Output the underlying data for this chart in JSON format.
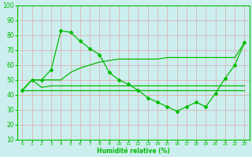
{
  "x": [
    0,
    1,
    2,
    3,
    4,
    5,
    6,
    7,
    8,
    9,
    10,
    11,
    12,
    13,
    14,
    15,
    16,
    17,
    18,
    19,
    20,
    21,
    22,
    23
  ],
  "line_main": [
    43,
    50,
    50,
    57,
    83,
    82,
    76,
    71,
    67,
    55,
    50,
    47,
    43,
    38,
    35,
    32,
    29,
    32,
    35,
    32,
    41,
    51,
    60,
    75
  ],
  "line_max": [
    43,
    50,
    50,
    50,
    50,
    55,
    58,
    60,
    62,
    63,
    64,
    64,
    64,
    64,
    64,
    65,
    65,
    65,
    65,
    65,
    65,
    65,
    65,
    75
  ],
  "line_med": [
    43,
    50,
    45,
    46,
    46,
    46,
    46,
    46,
    46,
    46,
    46,
    46,
    46,
    46,
    46,
    46,
    46,
    46,
    46,
    46,
    46,
    46,
    46,
    46
  ],
  "line_min": [
    43,
    43,
    43,
    43,
    43,
    43,
    43,
    43,
    43,
    43,
    43,
    43,
    43,
    43,
    43,
    43,
    43,
    43,
    43,
    43,
    43,
    43,
    43,
    43
  ],
  "line_color": "#00bb00",
  "bg_color": "#cceeee",
  "grid_color": "#ddaaaa",
  "xlabel": "Humidité relative (%)",
  "ylim": [
    10,
    100
  ],
  "xlim": [
    -0.5,
    23.5
  ],
  "yticks": [
    10,
    20,
    30,
    40,
    50,
    60,
    70,
    80,
    90,
    100
  ],
  "xticks": [
    0,
    1,
    2,
    3,
    4,
    5,
    6,
    7,
    8,
    9,
    10,
    11,
    12,
    13,
    14,
    15,
    16,
    17,
    18,
    19,
    20,
    21,
    22,
    23
  ]
}
